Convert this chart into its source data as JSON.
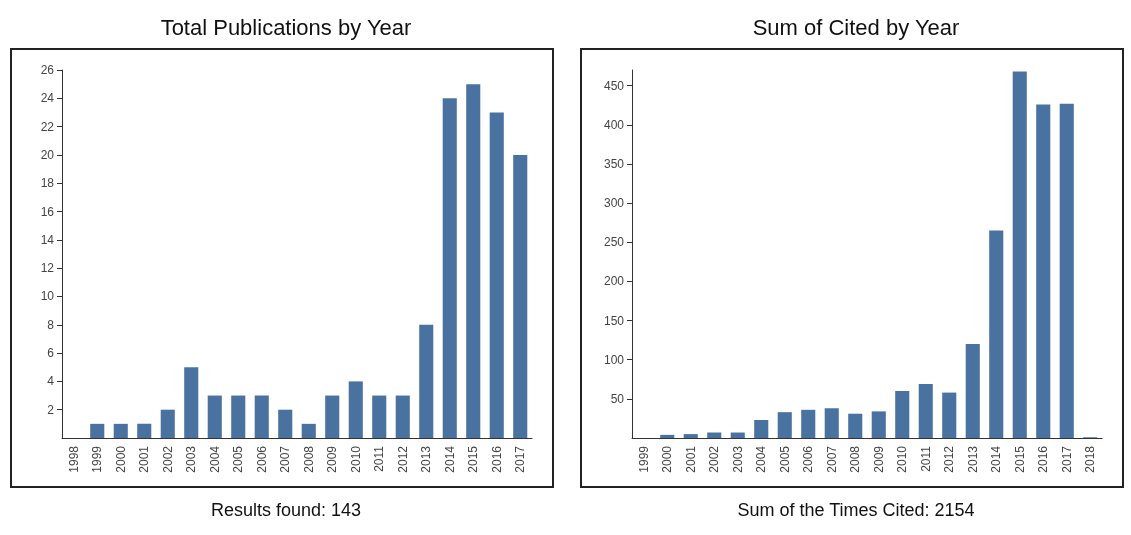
{
  "chart_data": [
    {
      "type": "bar",
      "title": "Total Publications by Year",
      "categories": [
        "1998",
        "1999",
        "2000",
        "2001",
        "2002",
        "2003",
        "2004",
        "2005",
        "2006",
        "2007",
        "2008",
        "2009",
        "2010",
        "2011",
        "2012",
        "2013",
        "2014",
        "2015",
        "2016",
        "2017"
      ],
      "values": [
        0,
        1,
        1,
        1,
        2,
        5,
        3,
        3,
        3,
        2,
        1,
        3,
        4,
        3,
        3,
        8,
        24,
        25,
        23,
        20
      ],
      "color": "#4a72a0",
      "ylim": [
        0,
        26
      ],
      "yticks": [
        2,
        4,
        6,
        8,
        10,
        12,
        14,
        16,
        18,
        20,
        22,
        24,
        26
      ],
      "grid": false,
      "annotations": [
        "Results found: 143"
      ]
    },
    {
      "type": "bar",
      "title": "Sum of Cited by Year",
      "categories": [
        "1999",
        "2000",
        "2001",
        "2002",
        "2003",
        "2004",
        "2005",
        "2006",
        "2007",
        "2008",
        "2009",
        "2010",
        "2011",
        "2012",
        "2013",
        "2014",
        "2015",
        "2016",
        "2017",
        "2018"
      ],
      "values": [
        0,
        4,
        5,
        7,
        7,
        23,
        33,
        36,
        38,
        31,
        34,
        60,
        69,
        58,
        120,
        265,
        468,
        426,
        427,
        1
      ],
      "color": "#4a72a0",
      "ylim": [
        0,
        470
      ],
      "yticks": [
        50,
        100,
        150,
        200,
        250,
        300,
        350,
        400,
        450
      ],
      "grid": false,
      "annotations": [
        "Sum of the Times Cited: 2154"
      ]
    }
  ]
}
